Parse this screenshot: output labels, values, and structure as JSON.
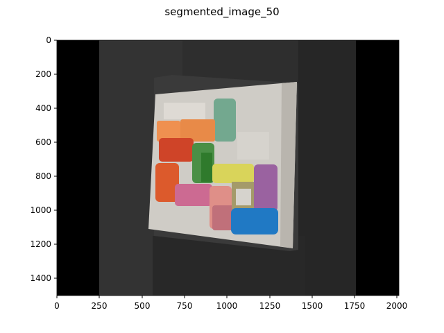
{
  "figure": {
    "title": "segmented_image_50"
  },
  "axes": {
    "x_ticks": [
      "0",
      "250",
      "500",
      "750",
      "1000",
      "1250",
      "1500",
      "1750",
      "2000"
    ],
    "y_ticks": [
      "0",
      "200",
      "400",
      "600",
      "800",
      "1000",
      "1200",
      "1400"
    ]
  },
  "image": {
    "description_colors": {
      "background": "#000000",
      "table": "#2c2c2c",
      "board": "#cfccc6",
      "orange": "#ea8a4a",
      "teal": "#73a88f",
      "red": "#cf4428",
      "green": "#4a8f46",
      "yellow": "#d9d45a",
      "purple": "#9a62a0",
      "orange_red": "#dc5a2c",
      "pink": "#cc6a92",
      "salmon": "#df8f88",
      "olive": "#a49a6a",
      "blue": "#2079c4"
    }
  }
}
